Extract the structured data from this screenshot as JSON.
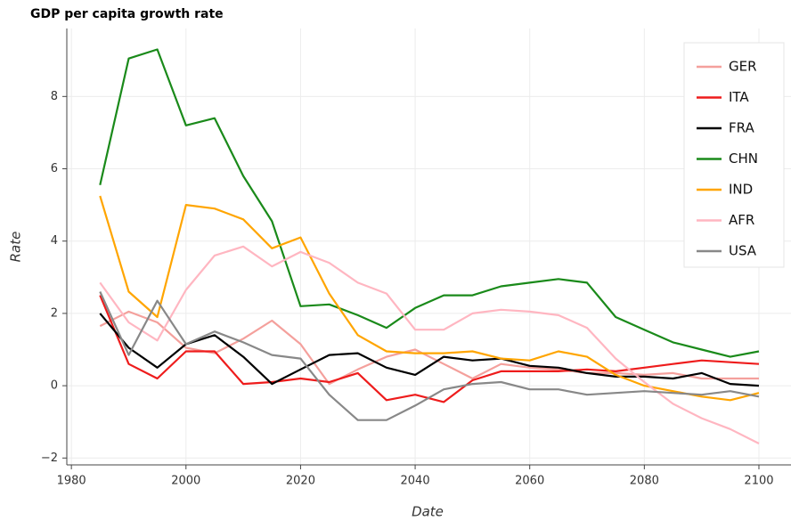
{
  "chart_data": {
    "type": "line",
    "title": "GDP per capita growth rate",
    "x_label": "Date",
    "y_label": "Rate",
    "x": [
      1985,
      1990,
      1995,
      2000,
      2005,
      2010,
      2015,
      2020,
      2025,
      2030,
      2035,
      2040,
      2045,
      2050,
      2055,
      2060,
      2065,
      2070,
      2075,
      2080,
      2085,
      2090,
      2095,
      2100
    ],
    "series": [
      {
        "name": "GER",
        "color": "#f4a09c",
        "values": [
          1.65,
          2.05,
          1.75,
          1.05,
          0.9,
          1.3,
          1.8,
          1.15,
          0.05,
          0.45,
          0.8,
          1.0,
          0.6,
          0.2,
          0.6,
          0.5,
          0.45,
          0.35,
          0.35,
          0.3,
          0.35,
          0.2,
          0.2,
          0.2
        ]
      },
      {
        "name": "ITA",
        "color": "#ee1c1c",
        "values": [
          2.5,
          0.6,
          0.2,
          0.95,
          0.95,
          0.05,
          0.1,
          0.2,
          0.1,
          0.35,
          -0.4,
          -0.25,
          -0.45,
          0.15,
          0.4,
          0.4,
          0.4,
          0.45,
          0.4,
          0.5,
          0.6,
          0.7,
          0.65,
          0.6
        ]
      },
      {
        "name": "FRA",
        "color": "#000000",
        "values": [
          2.0,
          1.05,
          0.5,
          1.15,
          1.4,
          0.8,
          0.05,
          0.45,
          0.85,
          0.9,
          0.5,
          0.3,
          0.8,
          0.7,
          0.75,
          0.55,
          0.5,
          0.35,
          0.25,
          0.25,
          0.2,
          0.35,
          0.05,
          0.0
        ]
      },
      {
        "name": "CHN",
        "color": "#1a8a1a",
        "values": [
          5.55,
          9.05,
          9.3,
          7.2,
          7.4,
          5.8,
          4.55,
          2.2,
          2.25,
          1.95,
          1.6,
          2.15,
          2.5,
          2.5,
          2.75,
          2.85,
          2.95,
          2.85,
          1.9,
          1.55,
          1.2,
          1.0,
          0.8,
          0.95
        ]
      },
      {
        "name": "IND",
        "color": "#ffa500",
        "values": [
          5.25,
          2.6,
          1.9,
          5.0,
          4.9,
          4.6,
          3.8,
          4.1,
          2.55,
          1.4,
          0.95,
          0.9,
          0.9,
          0.95,
          0.75,
          0.7,
          0.95,
          0.8,
          0.3,
          0.0,
          -0.15,
          -0.3,
          -0.4,
          -0.2
        ]
      },
      {
        "name": "AFR",
        "color": "#ffb6c1",
        "values": [
          2.85,
          1.75,
          1.25,
          2.65,
          3.6,
          3.85,
          3.3,
          3.7,
          3.4,
          2.85,
          2.55,
          1.55,
          1.55,
          2.0,
          2.1,
          2.05,
          1.95,
          1.6,
          0.75,
          0.1,
          -0.5,
          -0.9,
          -1.2,
          -1.6
        ]
      },
      {
        "name": "USA",
        "color": "#888888",
        "values": [
          2.6,
          0.85,
          2.35,
          1.15,
          1.5,
          1.2,
          0.85,
          0.75,
          -0.25,
          -0.95,
          -0.95,
          -0.55,
          -0.1,
          0.05,
          0.1,
          -0.1,
          -0.1,
          -0.25,
          -0.2,
          -0.15,
          -0.2,
          -0.25,
          -0.15,
          -0.3
        ]
      }
    ],
    "xlim": [
      1979.2,
      2105.6
    ],
    "ylim": [
      -2.19,
      9.88
    ],
    "xticks": [
      1980,
      2000,
      2020,
      2040,
      2060,
      2080,
      2100
    ],
    "yticks": [
      {
        "value": -2,
        "label": "−2"
      },
      0,
      2,
      4,
      6,
      8
    ],
    "grid": true,
    "legend": "upper right"
  }
}
